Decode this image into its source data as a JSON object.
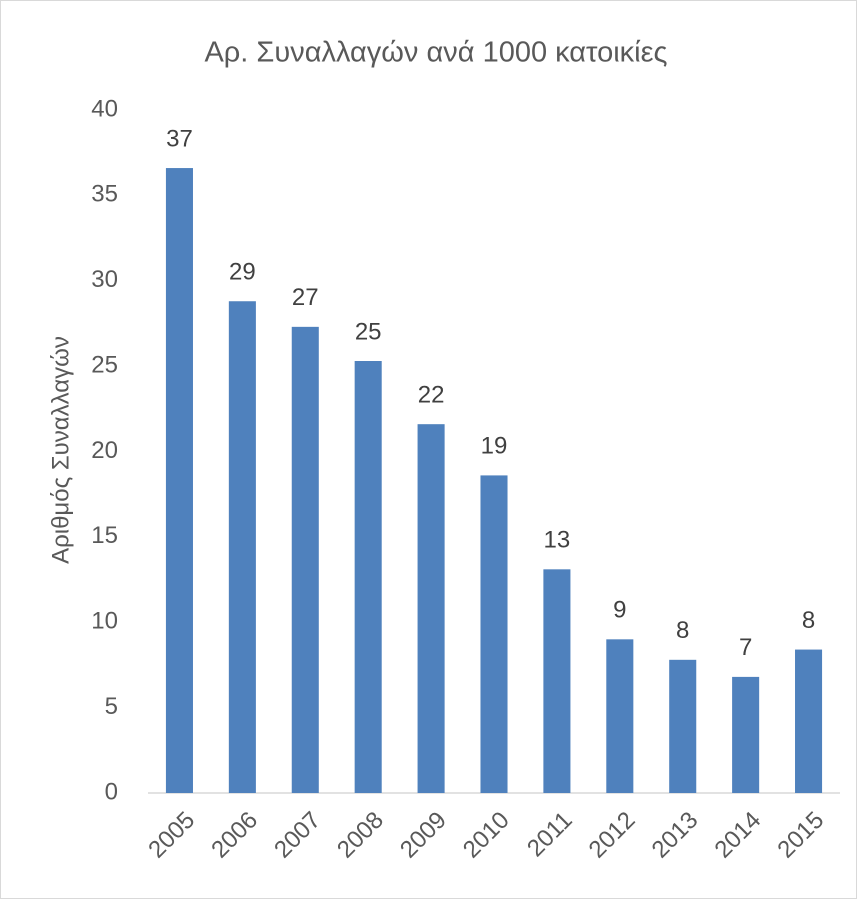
{
  "chart_data": {
    "type": "bar",
    "title": "Αρ. Συναλλαγών ανά 1000 κατοικίες",
    "y_label": "Αριθμός Συναλλαγών",
    "categories": [
      "2005",
      "2006",
      "2007",
      "2008",
      "2009",
      "2010",
      "2011",
      "2012",
      "2013",
      "2014",
      "2015"
    ],
    "values": [
      36.6,
      28.8,
      27.3,
      25.3,
      21.6,
      18.6,
      13.1,
      9.0,
      7.8,
      6.8,
      8.4
    ],
    "value_labels": [
      "37",
      "29",
      "27",
      "25",
      "22",
      "19",
      "13",
      "9",
      "8",
      "7",
      "8"
    ],
    "color": "#4f81bd",
    "ylim": [
      0,
      40
    ],
    "yticks": [
      0,
      5,
      10,
      15,
      20,
      25,
      30,
      35,
      40
    ],
    "grid": false
  }
}
